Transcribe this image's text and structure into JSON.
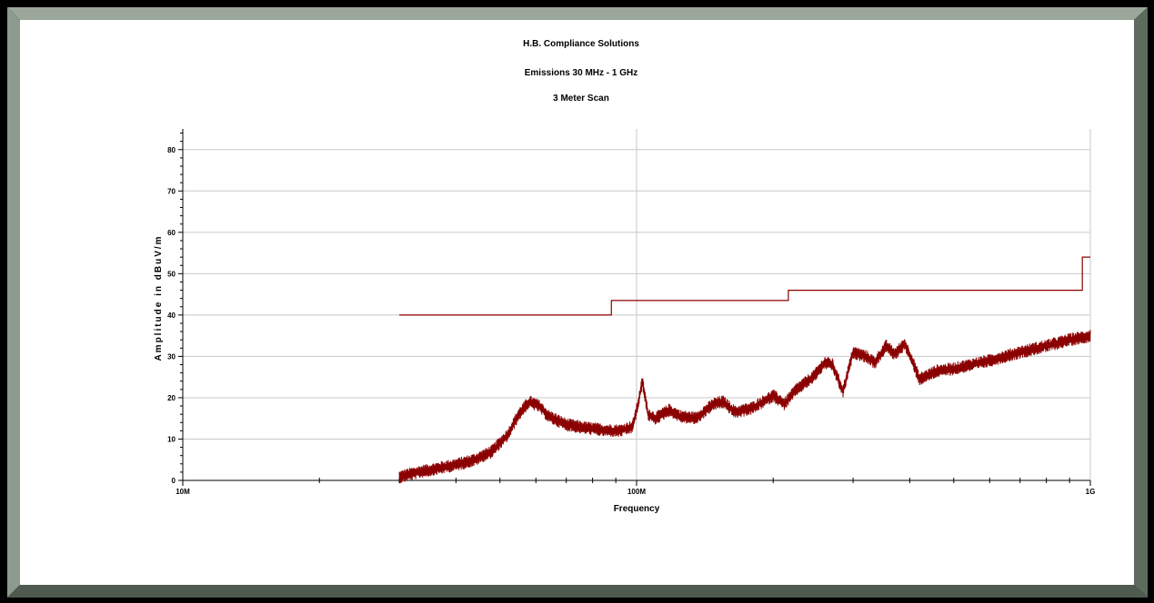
{
  "chart_data": {
    "type": "line",
    "title": "H.B. Compliance Solutions",
    "subtitle": "Emissions 30 MHz - 1 GHz",
    "subtitle2": "3 Meter Scan",
    "xlabel": "Frequency",
    "ylabel": "Amplitude in dBuV/m",
    "x_scale": "log",
    "xlim": [
      10000000,
      1000000000
    ],
    "ylim": [
      0,
      85
    ],
    "x_ticks": [
      {
        "value": 10000000,
        "label": "10M"
      },
      {
        "value": 100000000,
        "label": "100M"
      },
      {
        "value": 1000000000,
        "label": "1G"
      }
    ],
    "y_ticks": [
      0,
      10,
      20,
      30,
      40,
      50,
      60,
      70,
      80
    ],
    "grid": true,
    "colors": {
      "line": "#8b0000",
      "grid": "#c8c8c8",
      "background": "#ffffff",
      "border_light": "#9aa79a",
      "border_dark": "#4e5a4e"
    },
    "series": [
      {
        "role": "limit",
        "points": [
          [
            30000000,
            40
          ],
          [
            88000000,
            40
          ],
          [
            88000000,
            43.5
          ],
          [
            216000000,
            43.5
          ],
          [
            216000000,
            46
          ],
          [
            960000000,
            46
          ],
          [
            960000000,
            54
          ],
          [
            1000000000,
            54
          ]
        ]
      },
      {
        "role": "emissions",
        "noise": 1.6,
        "points": [
          [
            30000000,
            0.8
          ],
          [
            33000000,
            2
          ],
          [
            36000000,
            2.8
          ],
          [
            40000000,
            3.8
          ],
          [
            44000000,
            5
          ],
          [
            48000000,
            7
          ],
          [
            52000000,
            11
          ],
          [
            55000000,
            16
          ],
          [
            58000000,
            19
          ],
          [
            61000000,
            18
          ],
          [
            64000000,
            15.5
          ],
          [
            70000000,
            13.5
          ],
          [
            76000000,
            12.8
          ],
          [
            84000000,
            12.2
          ],
          [
            92000000,
            12
          ],
          [
            98000000,
            13
          ],
          [
            101000000,
            19
          ],
          [
            103000000,
            24
          ],
          [
            106000000,
            16
          ],
          [
            110000000,
            15
          ],
          [
            118000000,
            17
          ],
          [
            125000000,
            15.5
          ],
          [
            135000000,
            15
          ],
          [
            148000000,
            18.5
          ],
          [
            155000000,
            19
          ],
          [
            165000000,
            16.5
          ],
          [
            180000000,
            17.5
          ],
          [
            200000000,
            20.5
          ],
          [
            212000000,
            18.5
          ],
          [
            225000000,
            22
          ],
          [
            245000000,
            25
          ],
          [
            260000000,
            28.5
          ],
          [
            270000000,
            28
          ],
          [
            285000000,
            21.5
          ],
          [
            300000000,
            31
          ],
          [
            320000000,
            30
          ],
          [
            335000000,
            28.5
          ],
          [
            355000000,
            32.5
          ],
          [
            370000000,
            30.5
          ],
          [
            390000000,
            33
          ],
          [
            405000000,
            29
          ],
          [
            420000000,
            24.5
          ],
          [
            460000000,
            26.5
          ],
          [
            500000000,
            27
          ],
          [
            600000000,
            29
          ],
          [
            700000000,
            31
          ],
          [
            800000000,
            32.5
          ],
          [
            900000000,
            34
          ],
          [
            1000000000,
            35
          ]
        ]
      }
    ]
  }
}
